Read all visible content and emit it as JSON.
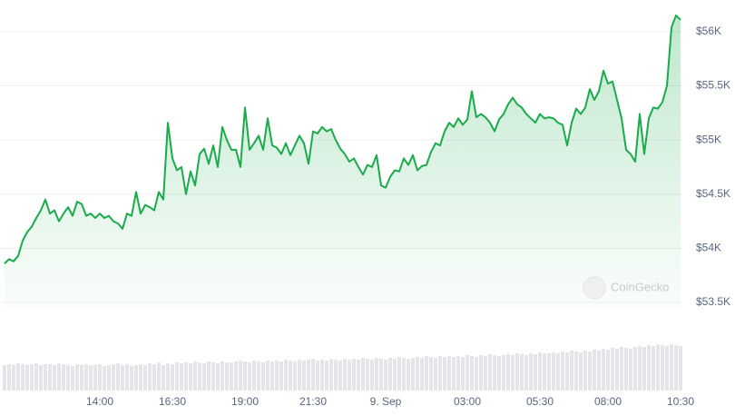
{
  "chart_data": [
    {
      "type": "line",
      "color": "#1aab4b",
      "grid": true,
      "categories": [
        null,
        null,
        null,
        null,
        null,
        null,
        null,
        null,
        null,
        null,
        null,
        null,
        null,
        null,
        null,
        null,
        null,
        null,
        null,
        null,
        null,
        "14:00",
        null,
        null,
        null,
        null,
        null,
        null,
        null,
        null,
        null,
        null,
        null,
        null,
        null,
        null,
        null,
        "16:30",
        null,
        null,
        null,
        null,
        null,
        null,
        null,
        null,
        null,
        null,
        null,
        null,
        null,
        null,
        null,
        "19:00",
        null,
        null,
        null,
        null,
        null,
        null,
        null,
        null,
        null,
        null,
        null,
        null,
        null,
        null,
        "21:30",
        null,
        null,
        null,
        null,
        null,
        null,
        null,
        null,
        null,
        null,
        null,
        null,
        null,
        null,
        null,
        "9. Sep",
        null,
        null,
        null,
        null,
        null,
        null,
        null,
        null,
        null,
        null,
        null,
        null,
        null,
        null,
        null,
        null,
        null,
        "03:00",
        null,
        null,
        null,
        null,
        null,
        null,
        null,
        null,
        null,
        null,
        null,
        null,
        null,
        null,
        null,
        "05:30",
        null,
        null,
        null,
        null,
        null,
        null,
        null,
        null,
        null,
        null,
        null,
        null,
        null,
        null,
        "08:00",
        null,
        null,
        null,
        null,
        null,
        null,
        null,
        null,
        null,
        null,
        null,
        null,
        null,
        null,
        null,
        "10:30"
      ],
      "values": [
        53860,
        53900,
        53880,
        53930,
        54070,
        54150,
        54200,
        54280,
        54350,
        54450,
        54320,
        54350,
        54250,
        54320,
        54380,
        54300,
        54430,
        54410,
        54300,
        54320,
        54280,
        54320,
        54280,
        54300,
        54250,
        54230,
        54180,
        54320,
        54300,
        54520,
        54320,
        54400,
        54380,
        54350,
        54520,
        54450,
        55160,
        54830,
        54720,
        54750,
        54500,
        54710,
        54580,
        54870,
        54920,
        54780,
        54950,
        54750,
        55120,
        55000,
        54910,
        54910,
        54750,
        55300,
        54910,
        54970,
        55040,
        54910,
        55200,
        54950,
        54930,
        54870,
        54970,
        54860,
        54950,
        55040,
        54970,
        54780,
        55080,
        55060,
        55120,
        55080,
        55100,
        55000,
        54920,
        54870,
        54800,
        54830,
        54750,
        54680,
        54770,
        54750,
        54860,
        54580,
        54560,
        54660,
        54720,
        54710,
        54830,
        54770,
        54860,
        54720,
        54760,
        54770,
        54890,
        54970,
        54950,
        55080,
        55160,
        55120,
        55200,
        55140,
        55190,
        55450,
        55210,
        55240,
        55210,
        55160,
        55080,
        55190,
        55240,
        55330,
        55390,
        55330,
        55300,
        55240,
        55200,
        55160,
        55240,
        55200,
        55210,
        55200,
        55160,
        55140,
        54950,
        55160,
        55290,
        55240,
        55300,
        55470,
        55370,
        55450,
        55640,
        55520,
        55540,
        55370,
        55200,
        54910,
        54870,
        54800,
        55240,
        54870,
        55200,
        55300,
        55290,
        55350,
        55500,
        56040,
        56150,
        56110
      ],
      "ylim": [
        53500,
        56150
      ],
      "yticks": [
        {
          "value": 53500,
          "label": "$53.5K"
        },
        {
          "value": 54000,
          "label": "$54K"
        },
        {
          "value": 54500,
          "label": "$54.5K"
        },
        {
          "value": 55000,
          "label": "$55K"
        },
        {
          "value": 55500,
          "label": "$55.5K"
        },
        {
          "value": 56000,
          "label": "$56K"
        }
      ],
      "watermark": "CoinGecko"
    },
    {
      "type": "bar",
      "color": "#e3e5e8",
      "values": [
        28,
        29,
        28,
        30,
        29,
        28,
        29,
        30,
        28,
        29,
        29,
        28,
        30,
        29,
        28,
        27,
        29,
        28,
        29,
        28,
        28,
        29,
        27,
        28,
        29,
        30,
        28,
        29,
        27,
        28,
        29,
        28,
        30,
        29,
        31,
        28,
        30,
        29,
        31,
        30,
        31,
        30,
        32,
        31,
        30,
        32,
        31,
        30,
        32,
        31,
        31,
        32,
        33,
        32,
        31,
        33,
        32,
        31,
        33,
        32,
        33,
        32,
        34,
        33,
        32,
        34,
        33,
        34,
        35,
        33,
        34,
        33,
        35,
        34,
        33,
        35,
        34,
        35,
        34,
        36,
        35,
        34,
        36,
        35,
        34,
        36,
        35,
        37,
        36,
        35,
        36,
        37,
        36,
        38,
        37,
        36,
        38,
        37,
        38,
        37,
        38,
        37,
        39,
        38,
        37,
        39,
        38,
        40,
        39,
        38,
        39,
        40,
        39,
        41,
        40,
        39,
        41,
        40,
        42,
        41,
        41,
        42,
        41,
        43,
        42,
        44,
        43,
        42,
        44,
        43,
        45,
        44,
        46,
        45,
        47,
        46,
        48,
        47,
        46,
        48,
        49,
        48,
        50,
        49,
        51,
        50,
        49,
        51,
        50,
        49
      ],
      "ylim": [
        0,
        60
      ]
    }
  ]
}
